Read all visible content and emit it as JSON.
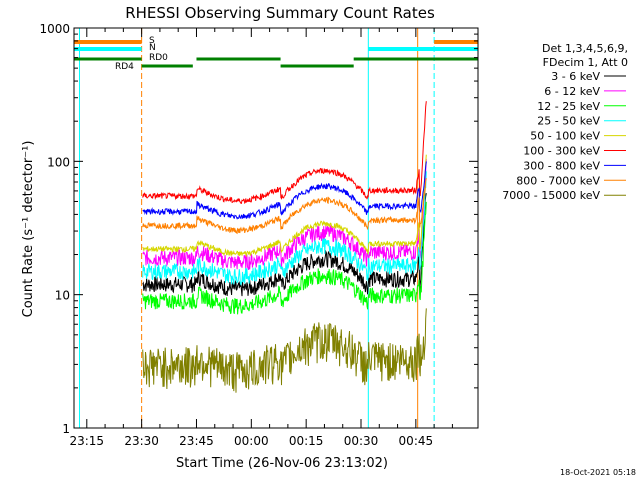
{
  "chart_data": {
    "type": "line",
    "title": "RHESSI Observing Summary Count Rates",
    "xlabel": "Start Time (26-Nov-06 23:13:02)",
    "ylabel": "Count Rate (s⁻¹ detector⁻¹)",
    "y_scale": "log",
    "ylim": [
      1,
      1000
    ],
    "xlim_minutes": [
      -1.5,
      109
    ],
    "x_ticks": [
      {
        "label": "23:15",
        "value": 2
      },
      {
        "label": "23:30",
        "value": 17
      },
      {
        "label": "23:45",
        "value": 32
      },
      {
        "label": "00:00",
        "value": 47
      },
      {
        "label": "00:15",
        "value": 62
      },
      {
        "label": "00:30",
        "value": 77
      },
      {
        "label": "00:45",
        "value": 92
      }
    ],
    "y_ticks": [
      {
        "label": "1",
        "value": 1
      },
      {
        "label": "10",
        "value": 10
      },
      {
        "label": "100",
        "value": 100
      },
      {
        "label": "1000",
        "value": 1000
      }
    ],
    "legend_header": [
      "Det 1,3,4,5,6,9,",
      "FDecim 1, Att 0"
    ],
    "legend_position": "right",
    "series": [
      {
        "name": "3 - 6 keV",
        "color": "#000000",
        "level": 12
      },
      {
        "name": "6 - 12 keV",
        "color": "#ff00ff",
        "level": 19
      },
      {
        "name": "12 - 25 keV",
        "color": "#00ff00",
        "level": 9
      },
      {
        "name": "25 - 50 keV",
        "color": "#00ffff",
        "level": 15
      },
      {
        "name": "50 - 100 keV",
        "color": "#d6d600",
        "level": 22
      },
      {
        "name": "100 - 300 keV",
        "color": "#ff0000",
        "level": 55
      },
      {
        "name": "300 - 800 keV",
        "color": "#0000ff",
        "level": 42
      },
      {
        "name": "800 - 7000 keV",
        "color": "#ff8000",
        "level": 33
      },
      {
        "name": "7000 - 15000 keV",
        "color": "#808000",
        "level": 3
      }
    ],
    "flag_labels": [
      {
        "label": "S",
        "color": "#ff8000"
      },
      {
        "label": "N",
        "color": "#00ffff"
      },
      {
        "label": "RD0",
        "color": "#008000"
      },
      {
        "label": "RD4",
        "color": "#008000"
      }
    ],
    "footer_date": "18-Oct-2021 05:18"
  }
}
